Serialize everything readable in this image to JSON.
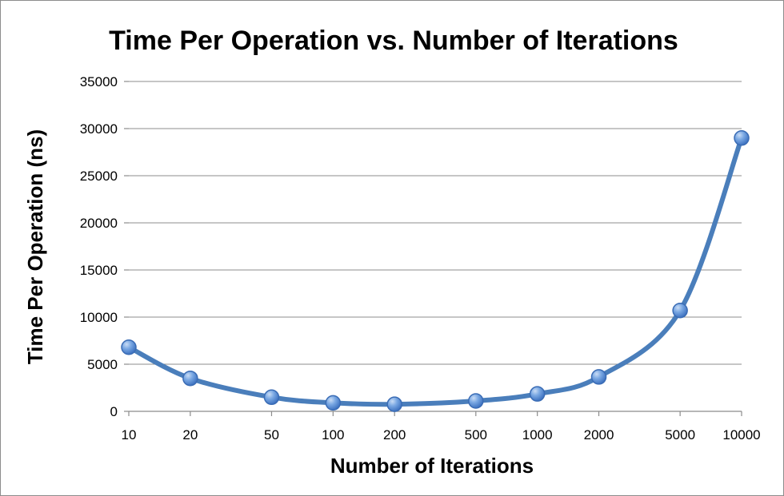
{
  "chart_data": {
    "type": "line",
    "title": "Time Per Operation vs. Number of Iterations",
    "xlabel": "Number of Iterations",
    "ylabel": "Time Per Operation (ns)",
    "x_scale": "log",
    "x": [
      10,
      20,
      50,
      100,
      200,
      500,
      1000,
      2000,
      5000,
      10000
    ],
    "x_tick_labels": [
      "10",
      "20",
      "50",
      "100",
      "200",
      "500",
      "1000",
      "2000",
      "5000",
      "10000"
    ],
    "y_ticks": [
      0,
      5000,
      10000,
      15000,
      20000,
      25000,
      30000,
      35000
    ],
    "y_tick_labels": [
      "0",
      "5000",
      "10000",
      "15000",
      "20000",
      "25000",
      "30000",
      "35000"
    ],
    "ylim": [
      0,
      35000
    ],
    "grid": true,
    "series": [
      {
        "values": [
          6800,
          3500,
          1500,
          900,
          750,
          1100,
          1850,
          3650,
          10700,
          29000
        ],
        "color": "#4a7ebb",
        "marker": "circle",
        "smooth": true
      }
    ]
  }
}
